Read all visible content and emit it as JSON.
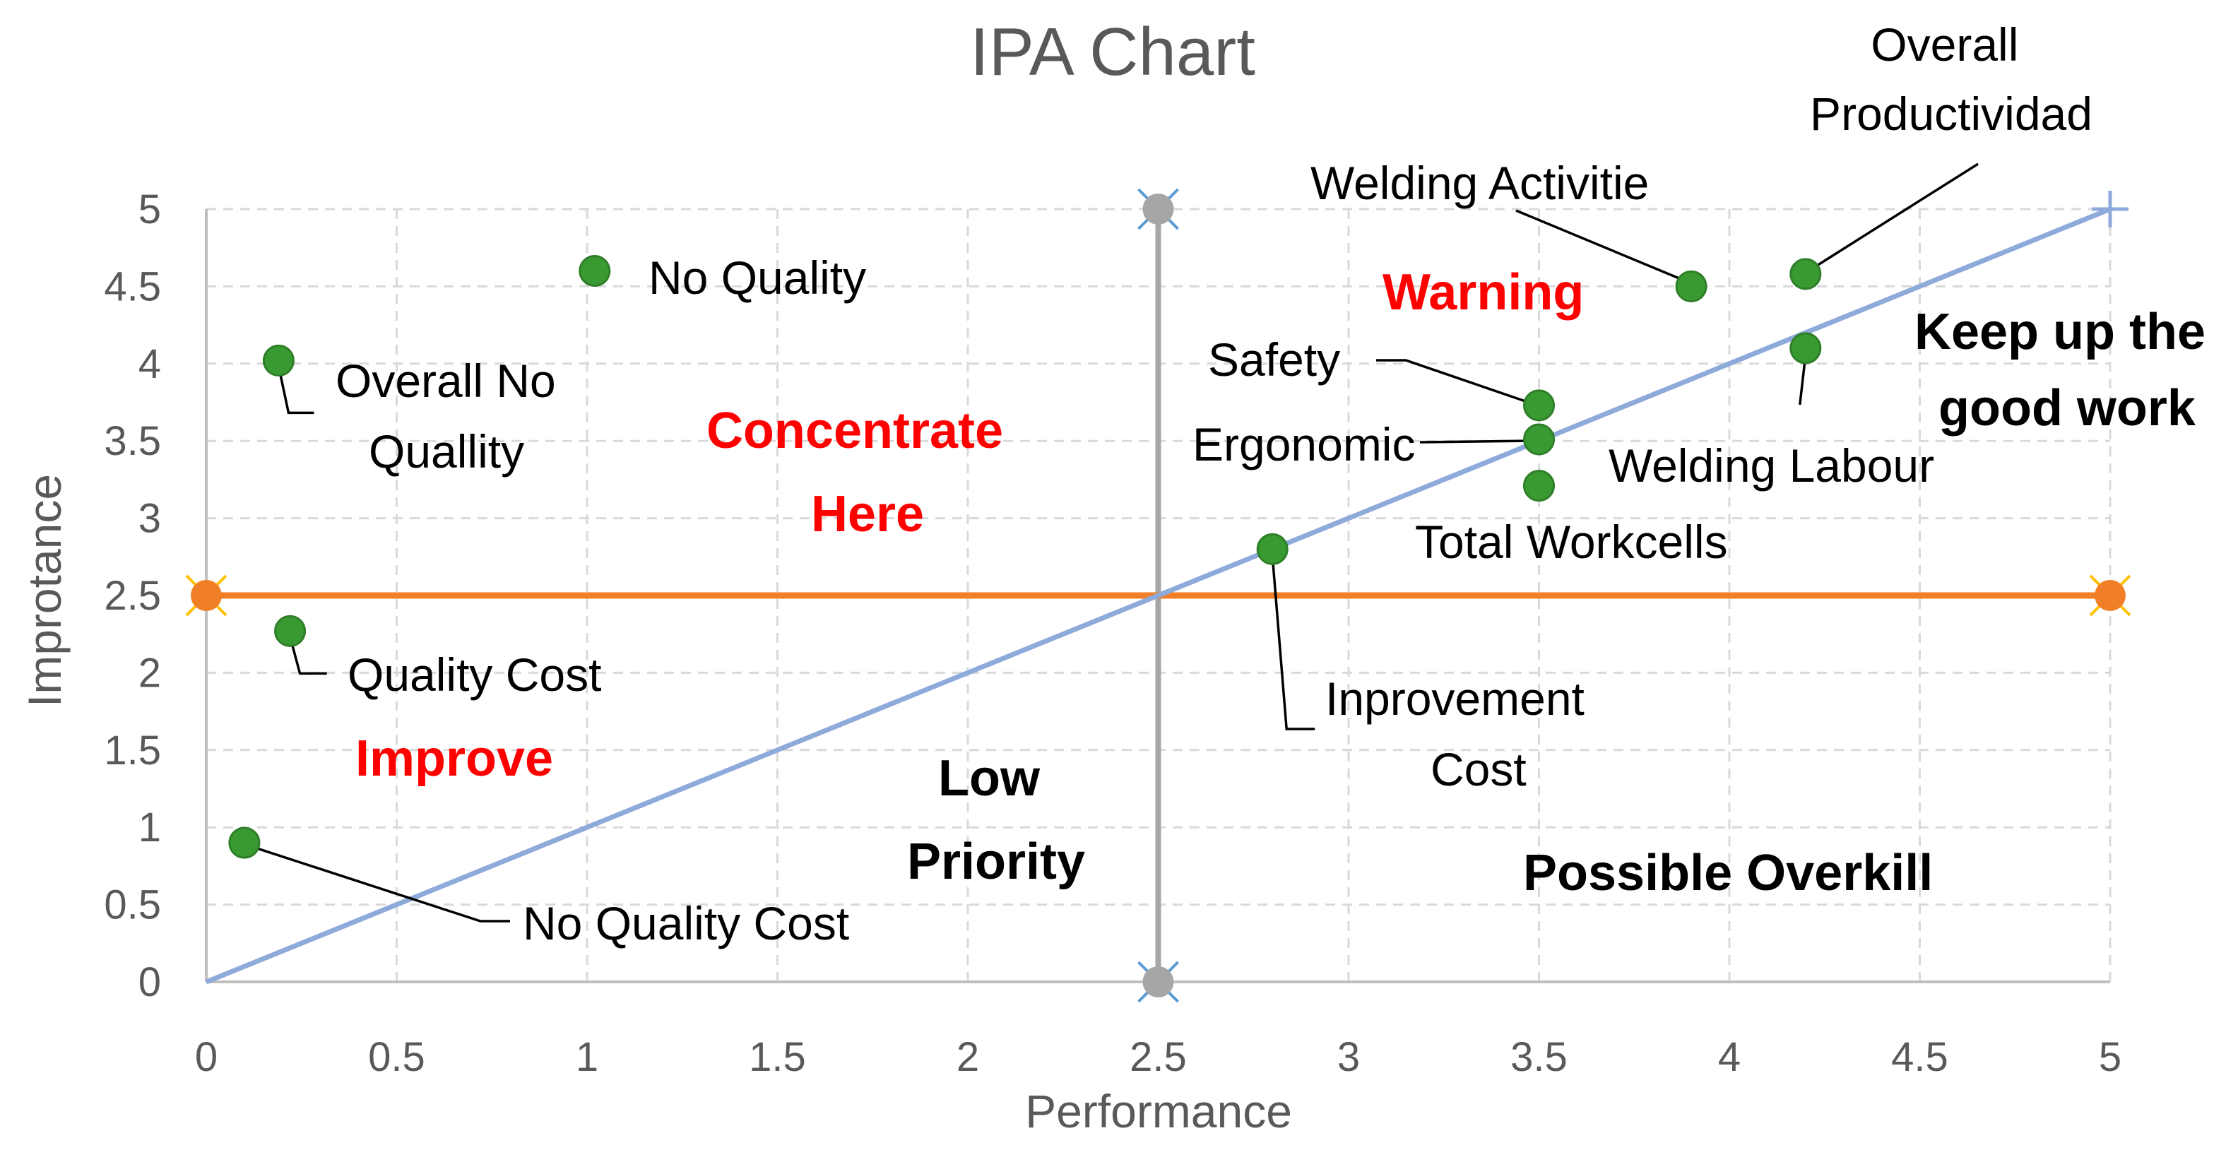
{
  "chart_data": {
    "type": "scatter",
    "title": "IPA Chart",
    "xlabel": "Performance",
    "ylabel": "Improtance",
    "xlim": [
      0,
      5
    ],
    "ylim": [
      0,
      5
    ],
    "x_ticks": [
      "0",
      "0.5",
      "1",
      "1.5",
      "2",
      "2.5",
      "3",
      "3.5",
      "4",
      "4.5",
      "5"
    ],
    "y_ticks": [
      "0",
      "0.5",
      "1",
      "1.5",
      "2",
      "2.5",
      "3",
      "3.5",
      "4",
      "4.5",
      "5"
    ],
    "grid": true,
    "points": [
      {
        "name": "No Quality",
        "x": 1.02,
        "y": 4.6
      },
      {
        "name": "Overall No Quallity",
        "x": 0.19,
        "y": 4.02
      },
      {
        "name": "Quality Cost",
        "x": 0.22,
        "y": 2.27
      },
      {
        "name": "No Quality Cost",
        "x": 0.1,
        "y": 0.9
      },
      {
        "name": "Inprovement Cost",
        "x": 2.8,
        "y": 2.8
      },
      {
        "name": "Safety",
        "x": 3.5,
        "y": 3.73
      },
      {
        "name": "Ergonomic",
        "x": 3.5,
        "y": 3.51
      },
      {
        "name": "Total Workcells",
        "x": 3.5,
        "y": 3.21
      },
      {
        "name": "Welding Activitie",
        "x": 3.9,
        "y": 4.5
      },
      {
        "name": "Overall Productividad",
        "x": 4.2,
        "y": 4.58
      },
      {
        "name": "Welding Labour",
        "x": 4.2,
        "y": 4.1
      }
    ],
    "reference_lines": {
      "vertical_x": 2.5,
      "horizontal_y": 2.5,
      "diagonal_from": [
        0,
        0
      ],
      "diagonal_to": [
        5,
        5
      ]
    },
    "quadrant_labels": {
      "concentrate_here": [
        "Concentrate",
        "Here"
      ],
      "improve": "Improve",
      "warning": "Warning",
      "keep_up": [
        "Keep up the",
        "good work"
      ],
      "low_priority": [
        "Low",
        "Priority"
      ],
      "possible_overkill": "Possible Overkill"
    },
    "colors": {
      "points": "#3a9a32",
      "point_edge": "#2f7f29",
      "horizontal_line": "#f07f28",
      "vertical_line": "#a6a6a6",
      "diagonal_line": "#8eaadb",
      "red_labels": "#ff0000",
      "black_labels": "#000000"
    }
  }
}
